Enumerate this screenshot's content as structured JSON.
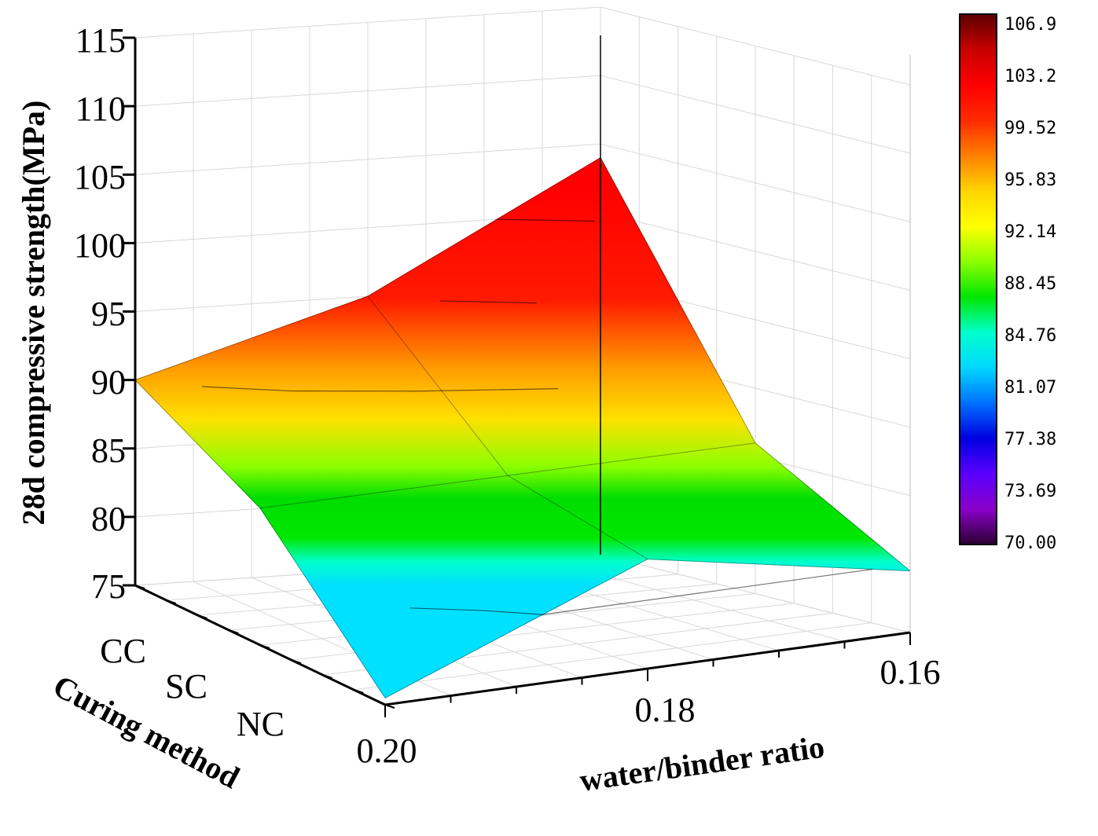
{
  "chart_data": {
    "type": "surface3d",
    "zlabel": "28d compressive strength(MPa)",
    "xlabel": "water/binder ratio",
    "ylabel": "Curing method",
    "x_ticks": [
      "0.20",
      "0.18",
      "0.16"
    ],
    "x_values": [
      0.2,
      0.18,
      0.16
    ],
    "y_ticks": [
      "CC",
      "SC",
      "NC"
    ],
    "z_ticks": [
      "75",
      "80",
      "85",
      "90",
      "95",
      "100",
      "105",
      "110",
      "115"
    ],
    "zlim": [
      75,
      115
    ],
    "surface": {
      "rows": [
        "CC",
        "SC",
        "NC"
      ],
      "columns": [
        0.2,
        0.18,
        0.16
      ],
      "values": [
        [
          90.0,
          95.0,
          104.0
        ],
        [
          85.0,
          85.5,
          86.0
        ],
        [
          75.5,
          83.0,
          79.5
        ]
      ]
    },
    "colorbar": {
      "labels": [
        "106.9",
        "103.2",
        "99.52",
        "95.83",
        "92.14",
        "88.45",
        "84.76",
        "81.07",
        "77.38",
        "73.69",
        "70.00"
      ],
      "range": [
        70.0,
        106.9
      ],
      "colors": [
        "#5c0000",
        "#c80000",
        "#ff0000",
        "#ff2a00",
        "#ff7f00",
        "#ffd400",
        "#ffff00",
        "#8cff00",
        "#00e600",
        "#00ffcc",
        "#00d8ff",
        "#0070ff",
        "#0000e0",
        "#5a00ff",
        "#8a00c8",
        "#2a0030"
      ]
    }
  }
}
